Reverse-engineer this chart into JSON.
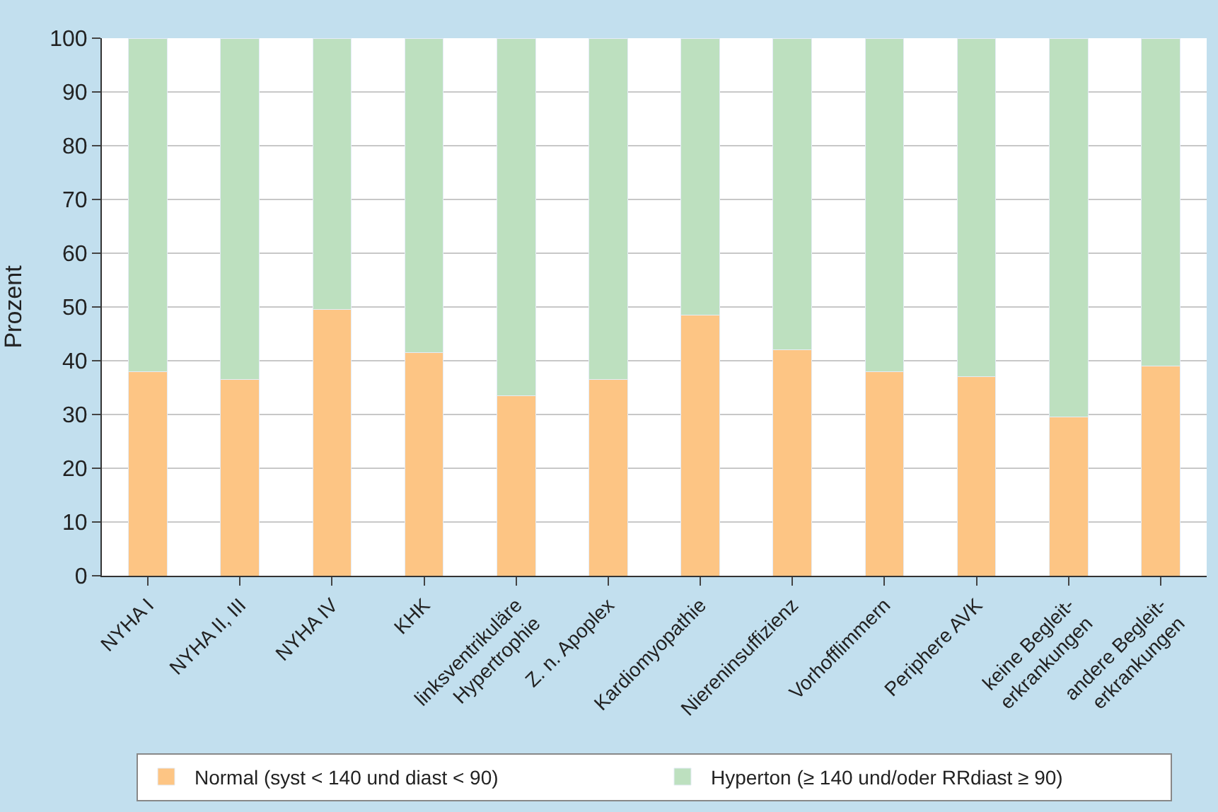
{
  "chart_data": {
    "type": "bar",
    "stacked": true,
    "ylabel": "Prozent",
    "categories": [
      "NYHA I",
      "NYHA II, III",
      "NYHA IV",
      "KHK",
      "linksventrikuläre\nHypertrophie",
      "Z. n. Apoplex",
      "Kardiomyopathie",
      "Niereninsuffizienz",
      "Vorhofflimmern",
      "Periphere AVK",
      "keine Begleit-\nerkrankungen",
      "andere Begleit-\nerkrankungen"
    ],
    "series": [
      {
        "name": "Normal (syst < 140 und diast < 90)",
        "color": "#fdc584",
        "values": [
          38,
          36.5,
          49.5,
          41.5,
          33.5,
          36.5,
          48.5,
          42,
          38,
          37,
          29.5,
          39
        ]
      },
      {
        "name": "Hyperton (≥ 140 und/oder RRdiast ≥ 90)",
        "color": "#bde0bf",
        "values": [
          62,
          63.5,
          50.5,
          58.5,
          66.5,
          63.5,
          51.5,
          58,
          62,
          63,
          70.5,
          61
        ]
      }
    ],
    "ylim": [
      0,
      100
    ],
    "yticks": [
      0,
      10,
      20,
      30,
      40,
      50,
      60,
      70,
      80,
      90,
      100
    ],
    "grid": "y",
    "legend": "bottom"
  }
}
